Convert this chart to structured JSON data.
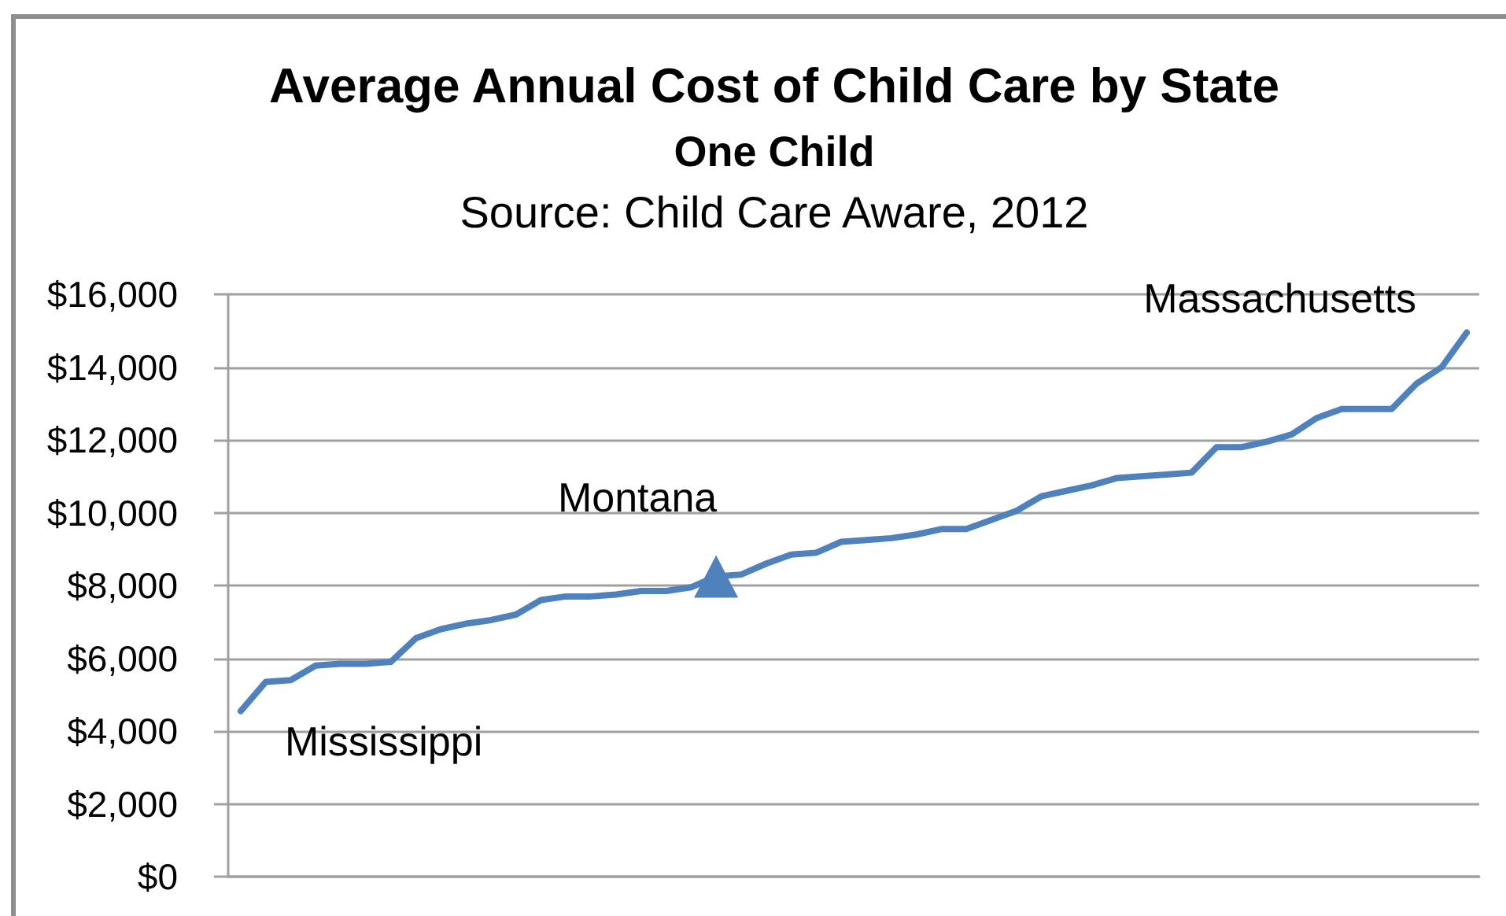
{
  "chart_data": {
    "type": "line",
    "title": "Average Annual Cost of Child Care by State",
    "subtitle": "One Child",
    "annotations": [
      "Source: Child Care Aware, 2012",
      "Mississippi",
      "Montana",
      "Massachusetts"
    ],
    "categories": [
      null,
      null,
      null,
      null,
      null,
      null,
      null,
      null,
      null,
      null,
      null,
      null,
      null,
      null,
      null,
      null,
      null,
      null,
      null,
      null,
      null,
      null,
      null,
      null,
      null,
      null,
      null,
      null,
      null,
      null,
      null,
      null,
      null,
      null,
      null,
      null,
      null,
      null,
      null,
      null,
      null,
      null,
      null,
      null,
      null,
      null,
      null,
      null,
      null,
      null
    ],
    "series": [
      {
        "color": "#4f81bd",
        "values": [
          4550,
          5350,
          5400,
          5800,
          5850,
          5850,
          5900,
          6550,
          6800,
          6950,
          7050,
          7200,
          7600,
          7700,
          7700,
          7750,
          7850,
          7850,
          7950,
          8250,
          8300,
          8600,
          8850,
          8900,
          9200,
          9250,
          9300,
          9400,
          9550,
          9550,
          9800,
          10050,
          10450,
          10600,
          10750,
          10950,
          11000,
          11050,
          11100,
          11800,
          11800,
          11950,
          12150,
          12600,
          12850,
          12850,
          12850,
          13550,
          14000,
          14950
        ]
      },
      {
        "type": "scatter",
        "marker": "triangle",
        "color": "#4f81bd",
        "values": [
          null,
          null,
          null,
          null,
          null,
          null,
          null,
          null,
          null,
          null,
          null,
          null,
          null,
          null,
          null,
          null,
          null,
          null,
          null,
          8250,
          null,
          null,
          null,
          null,
          null,
          null,
          null,
          null,
          null,
          null,
          null,
          null,
          null,
          null,
          null,
          null,
          null,
          null,
          null,
          null,
          null,
          null,
          null,
          null,
          null,
          null,
          null,
          null,
          null,
          null
        ]
      }
    ],
    "ylim": [
      0,
      16000
    ],
    "yticks": [
      {
        "value": 0,
        "label": "$0"
      },
      {
        "value": 2000,
        "label": "$2,000"
      },
      {
        "value": 4000,
        "label": "$4,000"
      },
      {
        "value": 6000,
        "label": "$6,000"
      },
      {
        "value": 8000,
        "label": "$8,000"
      },
      {
        "value": 10000,
        "label": "$10,000"
      },
      {
        "value": 12000,
        "label": "$12,000"
      },
      {
        "value": 14000,
        "label": "$14,000"
      },
      {
        "value": 16000,
        "label": "$16,000"
      }
    ],
    "grid": "y",
    "tick_labels": "y",
    "marker": "none"
  }
}
